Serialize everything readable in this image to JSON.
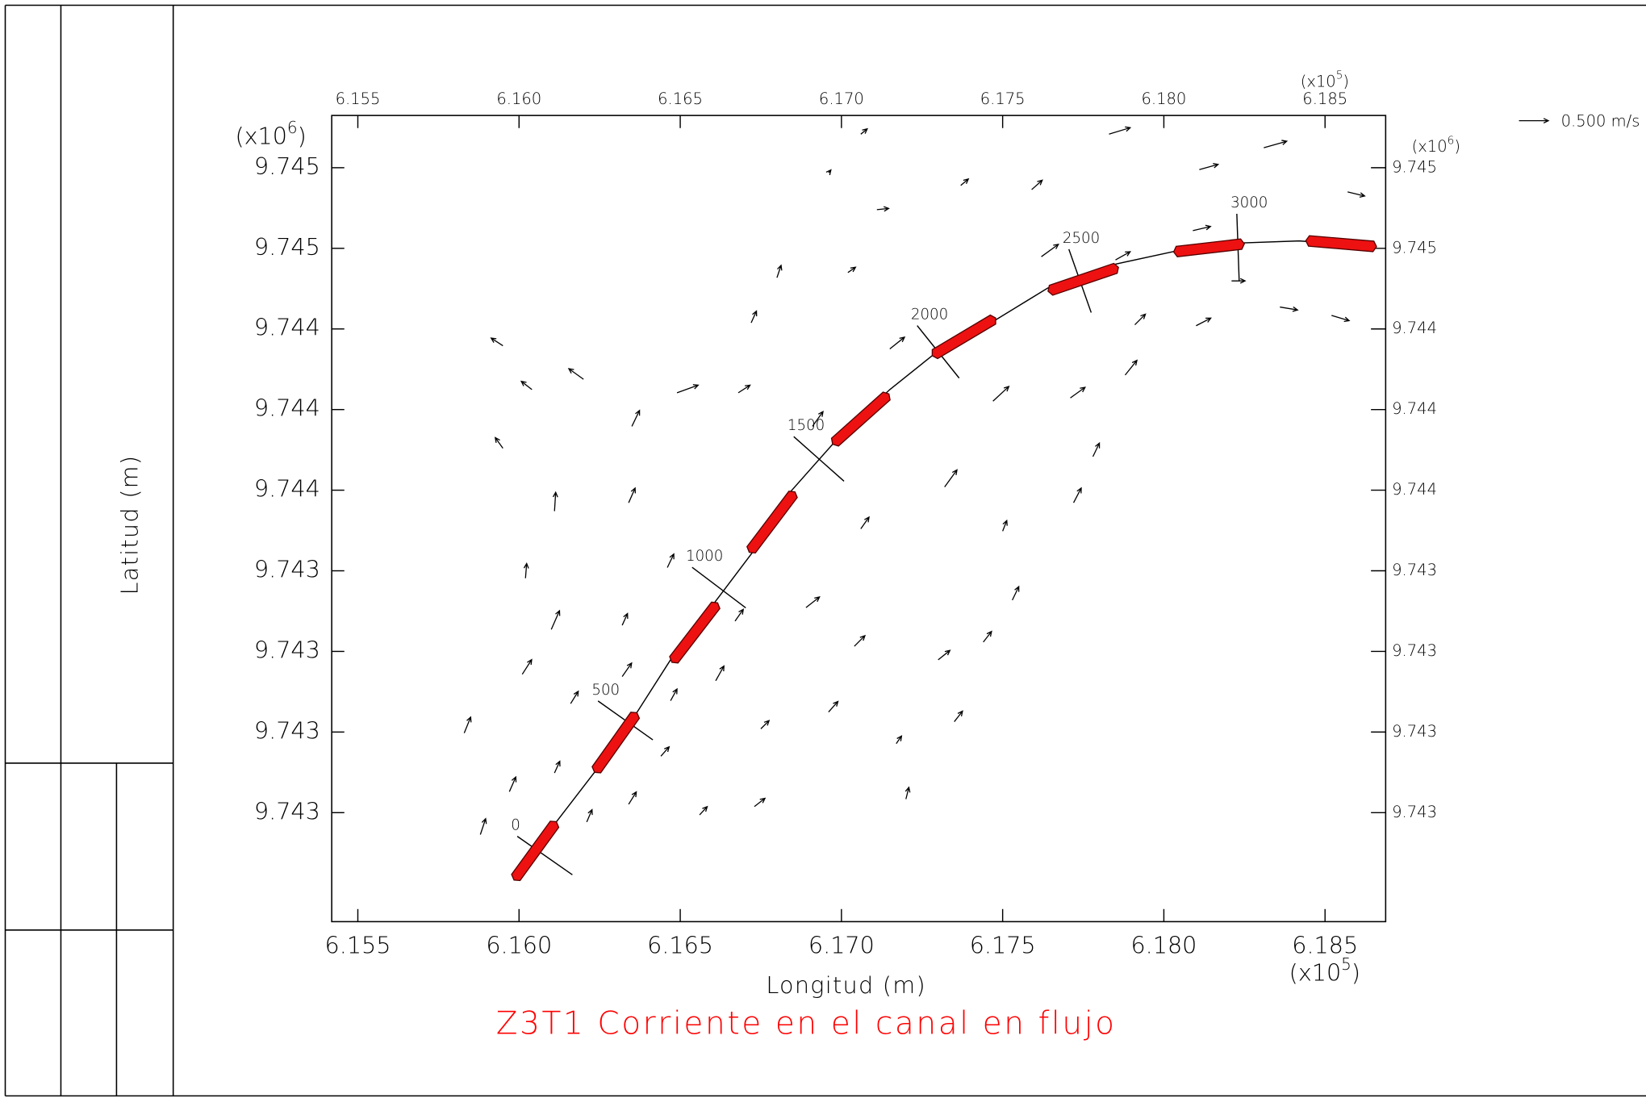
{
  "chart_data": {
    "type": "vector",
    "title": "Z3T1 Corriente en el canal en flujo",
    "x_label": "Longitud (m)",
    "y_label": "Latitud (m)",
    "x_multiplier": [
      "(x10",
      "5",
      ")"
    ],
    "y_multiplier": [
      "(x10",
      "6",
      ")"
    ],
    "title_color": "#ff0000",
    "segment_color": "#ee1111",
    "reference_vector": {
      "value": 0.5,
      "label": "0.500 m/s"
    },
    "xlim": [
      6.15419,
      6.18688
    ],
    "ylim": [
      9.742862,
      9.745362
    ],
    "xticks": [
      6.155,
      {
        "value": 6.16,
        "label": "6.160"
      },
      6.165,
      {
        "value": 6.17,
        "label": "6.170"
      },
      6.175,
      {
        "value": 6.18,
        "label": "6.180"
      },
      6.185
    ],
    "yticks": [
      {
        "value": 9.7452,
        "label": "9.745"
      },
      {
        "value": 9.74495,
        "label": "9.745"
      },
      {
        "value": 9.7447,
        "label": "9.744"
      },
      {
        "value": 9.74445,
        "label": "9.744"
      },
      {
        "value": 9.7442,
        "label": "9.744"
      },
      {
        "value": 9.74395,
        "label": "9.743"
      },
      {
        "value": 9.7437,
        "label": "9.743"
      },
      {
        "value": 9.74345,
        "label": "9.743"
      },
      {
        "value": 9.7432,
        "label": "9.743"
      }
    ],
    "vectors": {
      "x": [
        6.1583,
        6.1588,
        6.1597,
        6.1601,
        6.1602,
        6.1611,
        6.1595,
        6.1604,
        6.1595,
        6.162,
        6.161,
        6.1611,
        6.1616,
        6.1621,
        6.1632,
        6.1632,
        6.1634,
        6.1635,
        6.1634,
        6.1646,
        6.1647,
        6.1644,
        6.1649,
        6.1656,
        6.1661,
        6.1667,
        6.1668,
        6.1672,
        6.1673,
        6.1675,
        6.168,
        6.1689,
        6.1691,
        6.1696,
        6.1702,
        6.1704,
        6.1706,
        6.1706,
        6.1711,
        6.1717,
        6.1715,
        6.172,
        6.173,
        6.1732,
        6.1735,
        6.1737,
        6.1744,
        6.1747,
        6.175,
        6.1753,
        6.1759,
        6.1762,
        6.1771,
        6.1772,
        6.1778,
        6.1783,
        6.1785,
        6.1788,
        6.1791,
        6.1811,
        6.1809,
        6.181,
        6.1821,
        6.1831,
        6.1836,
        6.1852,
        6.1857,
        6.1696
      ],
      "y": [
        9.743447,
        9.743132,
        9.743265,
        9.743629,
        9.743927,
        9.744135,
        9.74433,
        9.744512,
        9.744648,
        9.744544,
        9.743768,
        9.743323,
        9.743538,
        9.743171,
        9.743622,
        9.743781,
        9.743226,
        9.744398,
        9.744161,
        9.74396,
        9.743547,
        9.743375,
        9.744502,
        9.743193,
        9.743609,
        9.743794,
        9.744502,
        9.744719,
        9.743219,
        9.74346,
        9.744859,
        9.743836,
        9.744398,
        9.743512,
        9.744875,
        9.743716,
        9.74408,
        9.745304,
        9.74507,
        9.743414,
        9.744638,
        9.743242,
        9.743674,
        9.74421,
        9.743482,
        9.745145,
        9.743729,
        9.744476,
        9.744073,
        9.743859,
        9.745132,
        9.744924,
        9.744486,
        9.744161,
        9.744304,
        9.745304,
        9.744914,
        9.744557,
        9.744713,
        9.745194,
        9.745005,
        9.74471,
        9.744849,
        9.745262,
        9.744768,
        9.744742,
        9.745125,
        9.745184
      ],
      "u": [
        0.11,
        0.09,
        0.11,
        0.16,
        0.02,
        0.02,
        -0.13,
        -0.18,
        -0.2,
        -0.25,
        0.14,
        0.09,
        0.13,
        0.09,
        0.16,
        0.09,
        0.13,
        0.13,
        0.11,
        0.11,
        0.11,
        0.14,
        0.36,
        0.13,
        0.14,
        0.14,
        0.2,
        0.09,
        0.18,
        0.14,
        0.07,
        0.23,
        0.18,
        0.16,
        0.13,
        0.18,
        0.14,
        0.11,
        0.2,
        0.09,
        0.25,
        0.05,
        0.2,
        0.21,
        0.14,
        0.13,
        0.14,
        0.27,
        0.07,
        0.11,
        0.18,
        0.29,
        0.25,
        0.13,
        0.11,
        0.36,
        0.25,
        0.2,
        0.18,
        0.32,
        0.3,
        0.25,
        0.23,
        0.39,
        0.3,
        0.3,
        0.29,
        0.04
      ],
      "v": [
        0.27,
        0.27,
        0.25,
        0.25,
        0.25,
        0.32,
        0.18,
        0.14,
        0.13,
        0.18,
        0.32,
        0.2,
        0.21,
        0.21,
        0.23,
        0.2,
        0.21,
        0.27,
        0.25,
        0.23,
        0.2,
        0.16,
        0.13,
        0.14,
        0.25,
        0.2,
        0.13,
        0.2,
        0.14,
        0.14,
        0.21,
        0.18,
        0.25,
        0.18,
        0.09,
        0.18,
        0.2,
        0.09,
        0.02,
        0.13,
        0.2,
        0.2,
        0.16,
        0.29,
        0.18,
        0.11,
        0.18,
        0.25,
        0.18,
        0.23,
        0.16,
        0.21,
        0.18,
        0.25,
        0.23,
        0.11,
        0.14,
        0.25,
        0.18,
        0.09,
        0.07,
        0.13,
        0,
        0.11,
        -0.05,
        -0.09,
        -0.07,
        0.05
      ]
    },
    "centerline": {
      "x": [
        6.1599,
        6.1611,
        6.1624,
        6.1636,
        6.1647,
        6.166,
        6.1673,
        6.1684,
        6.1699,
        6.1715,
        6.173,
        6.1748,
        6.1764,
        6.1785,
        6.1803,
        6.1822,
        6.1842,
        6.1866
      ],
      "y": [
        9.742992,
        9.743164,
        9.743333,
        9.743502,
        9.743674,
        9.743843,
        9.744015,
        9.744193,
        9.744362,
        9.744512,
        9.744632,
        9.744729,
        9.744827,
        9.744901,
        9.74494,
        9.744966,
        9.744973,
        9.744956
      ]
    },
    "segments": {
      "x1": [
        6.1599,
        6.1624,
        6.1648,
        6.1672,
        6.1698,
        6.1729,
        6.1765,
        6.1804,
        6.1845
      ],
      "y1": [
        9.742999,
        9.743333,
        9.743674,
        9.744015,
        9.744349,
        9.744622,
        9.74482,
        9.74494,
        9.744973
      ],
      "x2": [
        6.1611,
        6.1636,
        6.1661,
        6.1685,
        6.1714,
        6.1747,
        6.1785,
        6.1824,
        6.1865
      ],
      "y2": [
        9.743164,
        9.743502,
        9.743843,
        9.744187,
        9.744492,
        9.744729,
        9.744888,
        9.744963,
        9.744956
      ]
    },
    "chainage": {
      "values": [
        0,
        500,
        1000,
        1500,
        2000,
        2500,
        3000
      ],
      "x": [
        6.1608,
        6.1633,
        6.1662,
        6.1693,
        6.173,
        6.1774,
        6.1823
      ],
      "y": [
        9.743067,
        9.743486,
        9.743898,
        9.744297,
        9.744629,
        9.744849,
        9.744953
      ]
    }
  }
}
